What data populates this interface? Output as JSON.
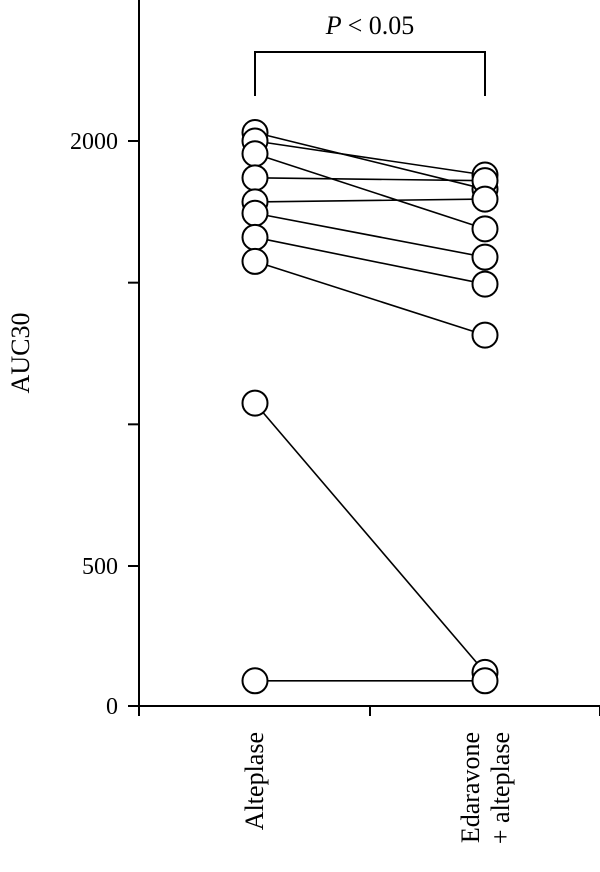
{
  "chart_data": {
    "type": "scatter",
    "categories": [
      "Alteplase",
      "Edaravone\n+ alteplase"
    ],
    "ylabel": "AUC30",
    "xlabel": "",
    "ylim": [
      0,
      2000
    ],
    "yticks": [
      0,
      500,
      2000
    ],
    "grid": false,
    "significance": {
      "text": "< 0.05",
      "prefix": "P"
    },
    "pairs": [
      {
        "alteplase": 2030,
        "edaravone_alteplase": 1830
      },
      {
        "alteplase": 2000,
        "edaravone_alteplase": 1880
      },
      {
        "alteplase": 1955,
        "edaravone_alteplase": 1690
      },
      {
        "alteplase": 1870,
        "edaravone_alteplase": 1860
      },
      {
        "alteplase": 1785,
        "edaravone_alteplase": 1795
      },
      {
        "alteplase": 1745,
        "edaravone_alteplase": 1590
      },
      {
        "alteplase": 1660,
        "edaravone_alteplase": 1495
      },
      {
        "alteplase": 1575,
        "edaravone_alteplase": 1315
      },
      {
        "alteplase": 1075,
        "edaravone_alteplase": 120
      },
      {
        "alteplase": 90,
        "edaravone_alteplase": 90
      }
    ]
  }
}
